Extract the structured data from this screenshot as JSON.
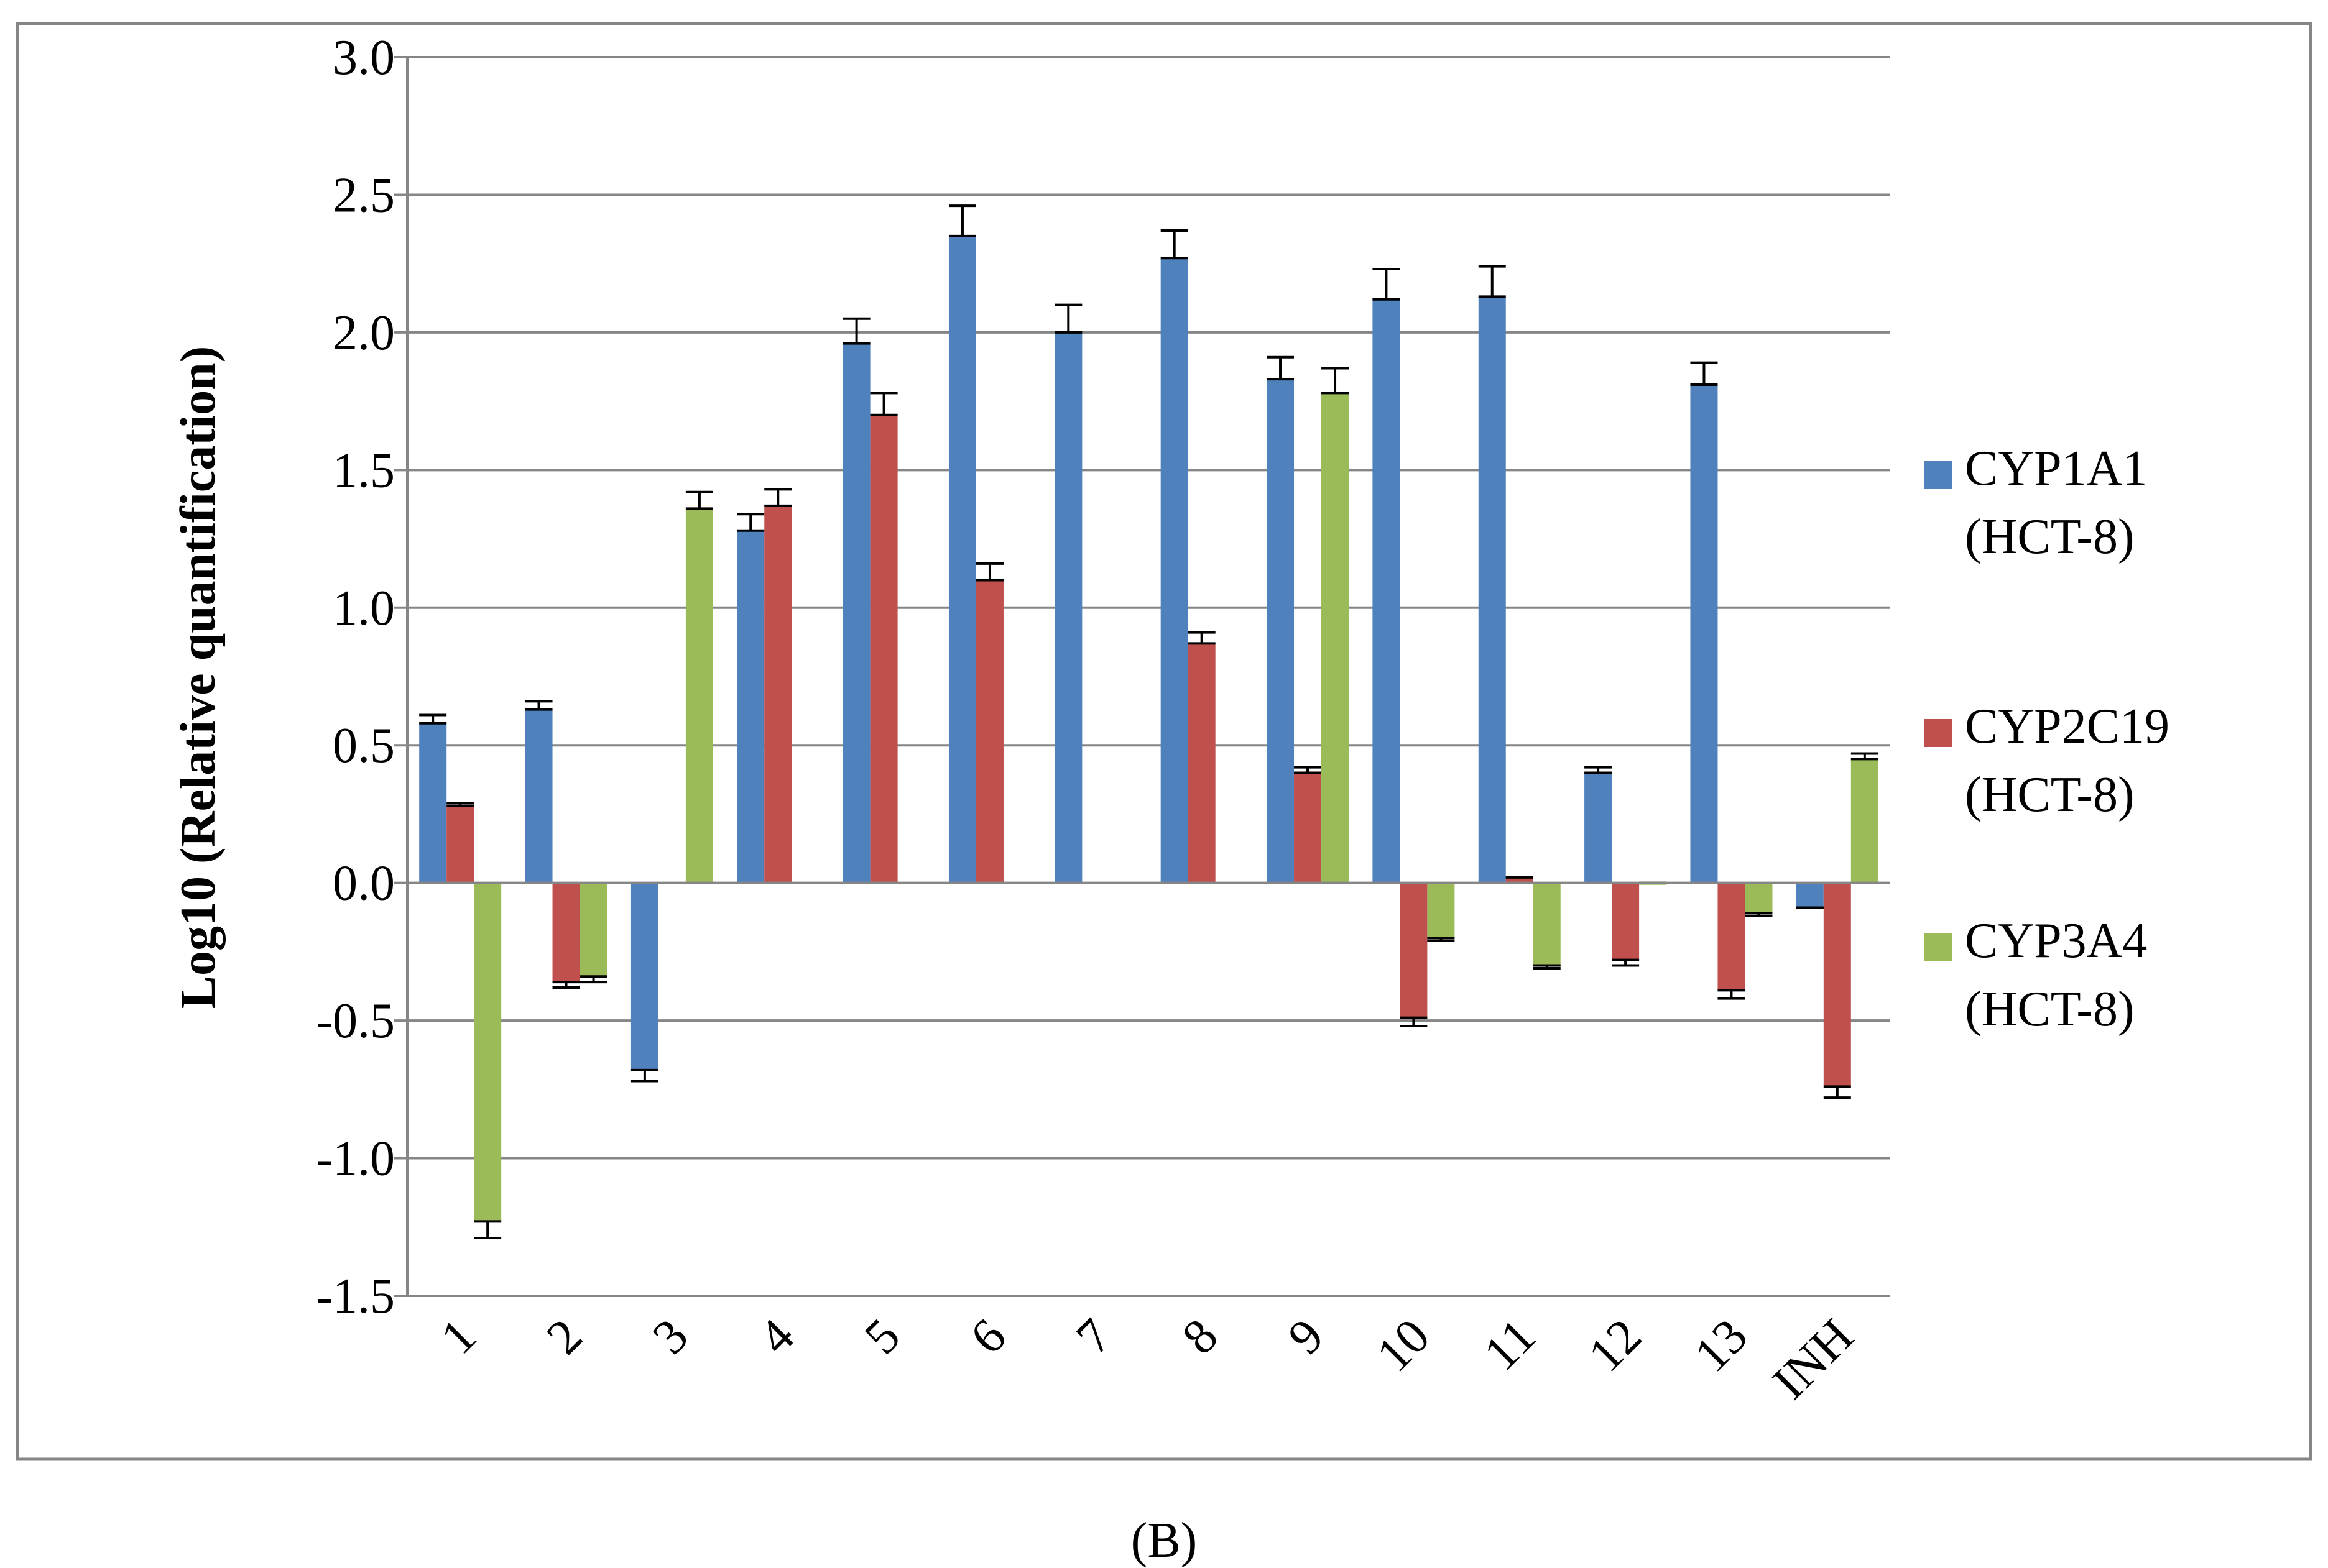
{
  "caption": "(B)",
  "chart_data": {
    "type": "bar",
    "title": "",
    "xlabel": "",
    "ylabel": "Log10 (Relative quantification)",
    "ylim": [
      -1.5,
      3.0
    ],
    "yticks": [
      3.0,
      2.5,
      2.0,
      1.5,
      1.0,
      0.5,
      0.0,
      -0.5,
      -1.0,
      -1.5
    ],
    "ytick_labels": [
      "3.0",
      "2.5",
      "2.0",
      "1.5",
      "1.0",
      "0.5",
      "0.0",
      "-0.5",
      "-1.0",
      "-1.5"
    ],
    "grid": true,
    "legend_position": "right",
    "categories": [
      "1",
      "2",
      "3",
      "4",
      "5",
      "6",
      "7",
      "8",
      "9",
      "10",
      "11",
      "12",
      "13",
      "INH"
    ],
    "series": [
      {
        "name": "CYP1A1 (HCT-8)",
        "legend_lines": [
          "CYP1A1",
          "(HCT-8)"
        ],
        "color": "#4F81BD",
        "values": [
          0.58,
          0.63,
          -0.68,
          1.28,
          1.96,
          2.35,
          2.0,
          2.27,
          1.83,
          2.12,
          2.13,
          0.4,
          1.81,
          -0.09
        ],
        "errors": [
          0.03,
          0.03,
          0.04,
          0.06,
          0.09,
          0.11,
          0.1,
          0.1,
          0.08,
          0.11,
          0.11,
          0.02,
          0.08,
          0.0
        ]
      },
      {
        "name": "CYP2C19 (HCT-8)",
        "legend_lines": [
          "CYP2C19",
          "(HCT-8)"
        ],
        "color": "#C0504D",
        "values": [
          0.28,
          -0.36,
          null,
          1.37,
          1.7,
          1.1,
          null,
          0.87,
          0.4,
          -0.49,
          0.02,
          -0.28,
          -0.39,
          -0.74
        ],
        "errors": [
          0.01,
          0.02,
          null,
          0.06,
          0.08,
          0.06,
          null,
          0.04,
          0.02,
          0.03,
          0.0,
          0.02,
          0.03,
          0.04
        ]
      },
      {
        "name": "CYP3A4 (HCT-8)",
        "legend_lines": [
          "CYP3A4",
          "(HCT-8)"
        ],
        "color": "#9BBB59",
        "values": [
          -1.23,
          -0.34,
          1.36,
          null,
          null,
          null,
          null,
          null,
          1.78,
          -0.2,
          -0.3,
          0.0,
          -0.11,
          0.45
        ],
        "errors": [
          0.06,
          0.02,
          0.06,
          null,
          null,
          null,
          null,
          null,
          0.09,
          0.01,
          0.01,
          0.0,
          0.01,
          0.02
        ]
      }
    ]
  }
}
